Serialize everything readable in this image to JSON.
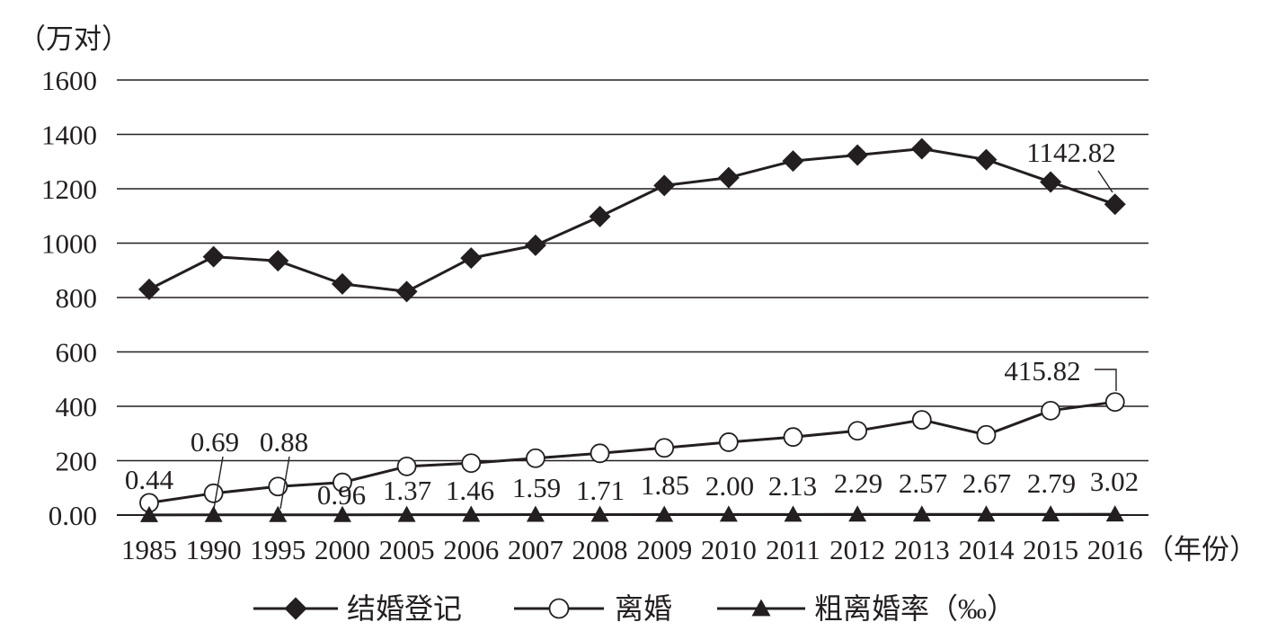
{
  "chart_data": {
    "type": "line",
    "ylabel": "（万对）",
    "xlabel": "（年份）",
    "y_tick_labels": [
      "0.00",
      "200",
      "400",
      "600",
      "800",
      "1000",
      "1200",
      "1400",
      "1600"
    ],
    "ylim": [
      0,
      1600
    ],
    "grid": true,
    "categories": [
      "1985",
      "1990",
      "1995",
      "2000",
      "2005",
      "2006",
      "2007",
      "2008",
      "2009",
      "2010",
      "2011",
      "2012",
      "2013",
      "2014",
      "2015",
      "2016"
    ],
    "legend_position": "bottom",
    "series": [
      {
        "name": "结婚登记",
        "marker": "diamond",
        "values": [
          830,
          950,
          935,
          850,
          822,
          945,
          992,
          1098,
          1212,
          1241,
          1302,
          1324,
          1347,
          1307,
          1225,
          1142.82
        ]
      },
      {
        "name": "离婚",
        "marker": "circle",
        "values": [
          45,
          80,
          105,
          120,
          179,
          191,
          209,
          227,
          247,
          268,
          287,
          310,
          350,
          295,
          384,
          415.82
        ]
      },
      {
        "name": "粗离婚率（‰）",
        "marker": "triangle",
        "values": [
          0.44,
          0.69,
          0.88,
          0.96,
          1.37,
          1.46,
          1.59,
          1.71,
          1.85,
          2.0,
          2.13,
          2.29,
          2.57,
          2.67,
          2.79,
          3.02
        ],
        "value_labels": [
          "0.44",
          "0.69",
          "0.88",
          "0.96",
          "1.37",
          "1.46",
          "1.59",
          "1.71",
          "1.85",
          "2.00",
          "2.13",
          "2.29",
          "2.57",
          "2.67",
          "2.79",
          "3.02"
        ]
      }
    ],
    "annotations": [
      {
        "series": 0,
        "index": 15,
        "text": "1142.82"
      },
      {
        "series": 1,
        "index": 15,
        "text": "415.82"
      }
    ],
    "colors": {
      "line": "#231f20",
      "background": "#ffffff"
    }
  }
}
